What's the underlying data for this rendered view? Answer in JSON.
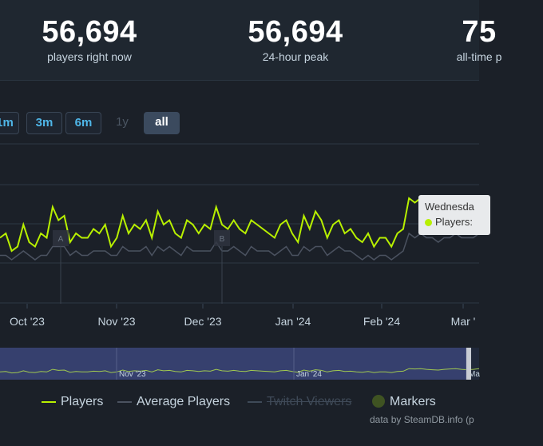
{
  "stats": [
    {
      "value": "56,694",
      "label": "players right now"
    },
    {
      "value": "56,694",
      "label": "24-hour peak"
    },
    {
      "value": "75",
      "label": "all-time p"
    }
  ],
  "range_buttons": [
    {
      "label": "1m",
      "state": "normal"
    },
    {
      "label": "3m",
      "state": "normal"
    },
    {
      "label": "6m",
      "state": "normal"
    },
    {
      "label": "1y",
      "state": "disabled"
    },
    {
      "label": "all",
      "state": "active"
    }
  ],
  "tooltip": {
    "date": "Wednesda",
    "series": "Players:"
  },
  "markers": [
    "A",
    "B"
  ],
  "legend": {
    "players": "Players",
    "average": "Average Players",
    "twitch": "Twitch Viewers",
    "markers": "Markers"
  },
  "credit": "data by SteamDB.info (p",
  "colors": {
    "players": "#b8f000",
    "average": "#4b5260",
    "twitch": "#3f4a58",
    "markers": "#3f5322",
    "accent_blue": "#4fb6e8",
    "navigator_bg": "#3b4478"
  },
  "chart_data": {
    "type": "line",
    "x_tick_labels": [
      "Oct '23",
      "Nov '23",
      "Dec '23",
      "Jan '24",
      "Feb '24",
      "Mar '"
    ],
    "navigator_tick_labels": [
      "Nov '23",
      "Jan '24",
      "Ma"
    ],
    "series": [
      {
        "name": "Players",
        "values": [
          15,
          16,
          12,
          13,
          18,
          14,
          13,
          16,
          15,
          22,
          19,
          20,
          14,
          16,
          15,
          15,
          17,
          16,
          18,
          13,
          15,
          20,
          16,
          18,
          17,
          19,
          15,
          21,
          18,
          19,
          16,
          15,
          19,
          18,
          16,
          18,
          17,
          22,
          18,
          17,
          19,
          17,
          16,
          19,
          18,
          17,
          16,
          15,
          18,
          19,
          16,
          14,
          20,
          17,
          21,
          19,
          15,
          18,
          19,
          16,
          17,
          15,
          14,
          16,
          13,
          15,
          15,
          13,
          16,
          17,
          24,
          23,
          24,
          22,
          21,
          20,
          22,
          23,
          24,
          22,
          21,
          22,
          24
        ]
      },
      {
        "name": "Average Players",
        "values": [
          11,
          11,
          10,
          11,
          12,
          11,
          10,
          11,
          11,
          13,
          13,
          13,
          11,
          12,
          11,
          11,
          12,
          12,
          12,
          11,
          11,
          13,
          12,
          12,
          12,
          13,
          11,
          13,
          12,
          13,
          12,
          11,
          13,
          12,
          12,
          12,
          12,
          14,
          12,
          12,
          13,
          12,
          11,
          13,
          12,
          12,
          12,
          11,
          12,
          13,
          11,
          11,
          13,
          12,
          13,
          13,
          11,
          12,
          13,
          12,
          12,
          11,
          10,
          11,
          10,
          11,
          11,
          10,
          11,
          12,
          16,
          15,
          16,
          15,
          15,
          14,
          15,
          15,
          16,
          15,
          15,
          15,
          16
        ]
      },
      {
        "name": "Twitch Viewers",
        "values": []
      }
    ],
    "grid": true,
    "legend_position": "bottom"
  }
}
